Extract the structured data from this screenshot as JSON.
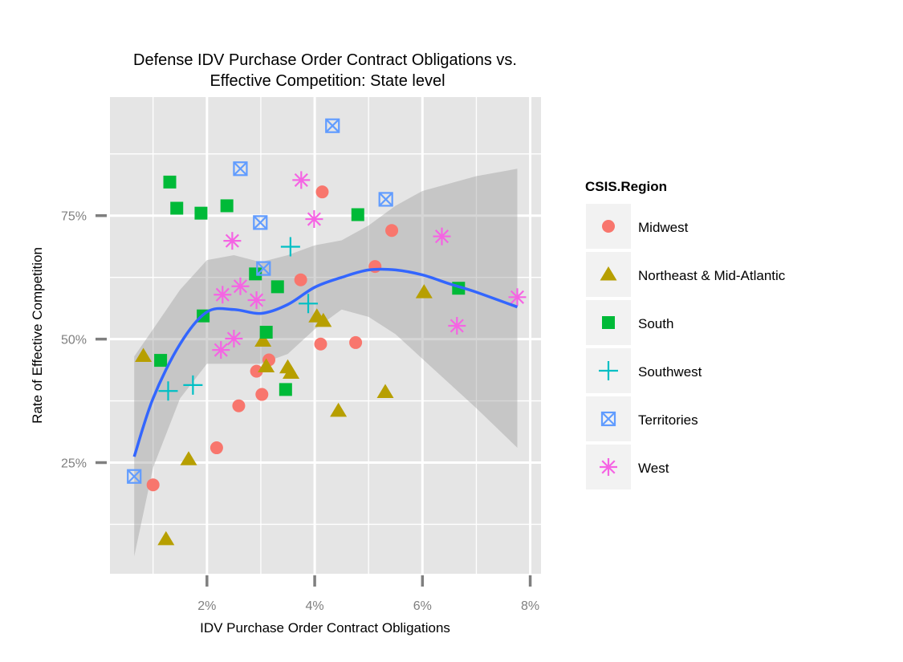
{
  "chart_data": {
    "type": "scatter",
    "title": "Defense IDV Purchase Order Contract Obligations vs.",
    "subtitle": "Effective Competition: State level",
    "xlabel": "IDV Purchase Order Contract Obligations",
    "ylabel": "Rate of Effective Competition",
    "xlim": [
      0.002,
      0.082
    ],
    "ylim": [
      0.025,
      0.99
    ],
    "x_ticks": [
      {
        "value": 0.02,
        "label": "2%"
      },
      {
        "value": 0.04,
        "label": "4%"
      },
      {
        "value": 0.06,
        "label": "6%"
      },
      {
        "value": 0.08,
        "label": "8%"
      }
    ],
    "y_ticks": [
      {
        "value": 0.25,
        "label": "25%"
      },
      {
        "value": 0.5,
        "label": "50%"
      },
      {
        "value": 0.75,
        "label": "75%"
      }
    ],
    "grid": true,
    "legend": {
      "title": "CSIS.Region",
      "position": "right"
    },
    "series": [
      {
        "name": "Midwest",
        "shape": "circle",
        "color": "#F8766D",
        "points": [
          [
            0.01,
            0.205
          ],
          [
            0.0218,
            0.28
          ],
          [
            0.0259,
            0.365
          ],
          [
            0.0292,
            0.435
          ],
          [
            0.0302,
            0.388
          ],
          [
            0.0315,
            0.458
          ],
          [
            0.0374,
            0.62
          ],
          [
            0.0411,
            0.49
          ],
          [
            0.0414,
            0.798
          ],
          [
            0.0476,
            0.493
          ],
          [
            0.0512,
            0.647
          ],
          [
            0.0543,
            0.72
          ]
        ]
      },
      {
        "name": "Northeast & Mid-Atlantic",
        "shape": "triangle",
        "color": "#B79F00",
        "points": [
          [
            0.0082,
            0.466
          ],
          [
            0.0124,
            0.095
          ],
          [
            0.0166,
            0.257
          ],
          [
            0.0304,
            0.497
          ],
          [
            0.031,
            0.445
          ],
          [
            0.035,
            0.443
          ],
          [
            0.0356,
            0.432
          ],
          [
            0.0404,
            0.546
          ],
          [
            0.0416,
            0.537
          ],
          [
            0.0444,
            0.355
          ],
          [
            0.0531,
            0.393
          ],
          [
            0.0603,
            0.595
          ]
        ]
      },
      {
        "name": "South",
        "shape": "square",
        "color": "#00BA38",
        "points": [
          [
            0.0114,
            0.457
          ],
          [
            0.0131,
            0.818
          ],
          [
            0.0144,
            0.765
          ],
          [
            0.0189,
            0.755
          ],
          [
            0.0193,
            0.547
          ],
          [
            0.0237,
            0.77
          ],
          [
            0.029,
            0.632
          ],
          [
            0.031,
            0.514
          ],
          [
            0.0331,
            0.606
          ],
          [
            0.0346,
            0.398
          ],
          [
            0.048,
            0.752
          ],
          [
            0.0667,
            0.603
          ]
        ]
      },
      {
        "name": "Southwest",
        "shape": "plus",
        "color": "#00BFC4",
        "points": [
          [
            0.0128,
            0.395
          ],
          [
            0.0174,
            0.407
          ],
          [
            0.0355,
            0.687
          ],
          [
            0.0388,
            0.572
          ]
        ]
      },
      {
        "name": "Territories",
        "shape": "square-x",
        "color": "#619CFF",
        "points": [
          [
            0.0065,
            0.222
          ],
          [
            0.0262,
            0.845
          ],
          [
            0.0299,
            0.736
          ],
          [
            0.0305,
            0.643
          ],
          [
            0.0433,
            0.932
          ],
          [
            0.0532,
            0.783
          ]
        ]
      },
      {
        "name": "West",
        "shape": "star",
        "color": "#F564E3",
        "points": [
          [
            0.0226,
            0.478
          ],
          [
            0.0229,
            0.59
          ],
          [
            0.0247,
            0.699
          ],
          [
            0.025,
            0.501
          ],
          [
            0.0262,
            0.607
          ],
          [
            0.0292,
            0.579
          ],
          [
            0.0375,
            0.822
          ],
          [
            0.0399,
            0.743
          ],
          [
            0.0636,
            0.708
          ],
          [
            0.0664,
            0.527
          ],
          [
            0.0776,
            0.585
          ]
        ]
      }
    ],
    "smooth": {
      "method": "loess",
      "color": "#3366FF",
      "x": [
        0.0065,
        0.01,
        0.015,
        0.02,
        0.025,
        0.03,
        0.035,
        0.04,
        0.045,
        0.05,
        0.055,
        0.06,
        0.065,
        0.07,
        0.0776
      ],
      "y": [
        0.262,
        0.38,
        0.49,
        0.555,
        0.56,
        0.552,
        0.57,
        0.605,
        0.625,
        0.64,
        0.64,
        0.63,
        0.612,
        0.595,
        0.565
      ],
      "ymin": [
        0.06,
        0.24,
        0.38,
        0.45,
        0.45,
        0.45,
        0.47,
        0.52,
        0.56,
        0.545,
        0.51,
        0.46,
        0.41,
        0.36,
        0.28
      ],
      "ymax": [
        0.465,
        0.52,
        0.6,
        0.66,
        0.67,
        0.656,
        0.67,
        0.69,
        0.7,
        0.73,
        0.77,
        0.8,
        0.815,
        0.83,
        0.845
      ]
    }
  }
}
